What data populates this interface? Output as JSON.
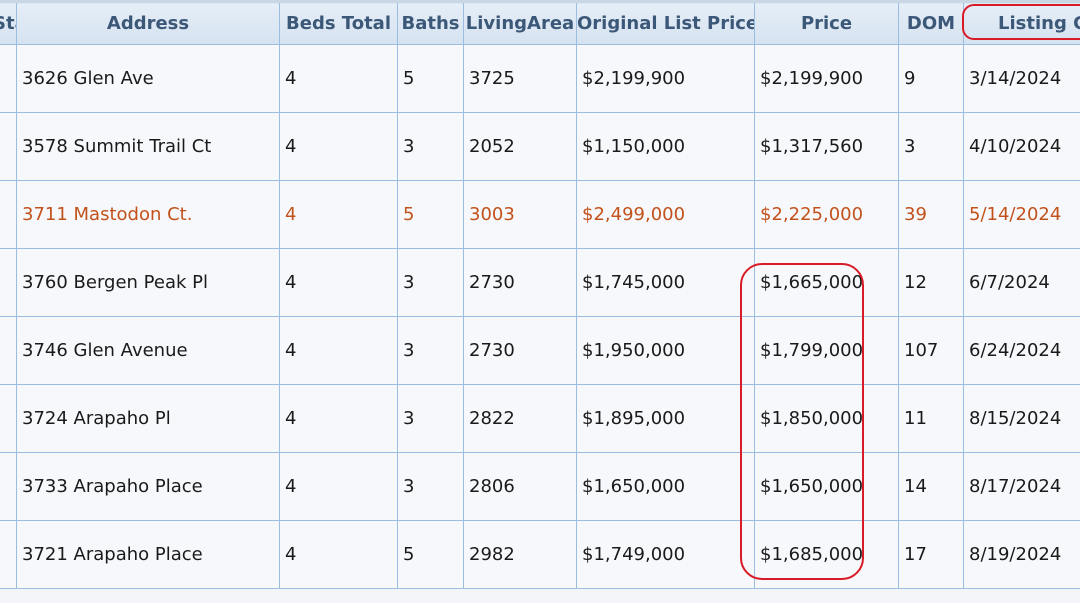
{
  "columns": [
    {
      "key": "status",
      "label": "Status"
    },
    {
      "key": "address",
      "label": "Address"
    },
    {
      "key": "beds",
      "label": "Beds Total"
    },
    {
      "key": "baths",
      "label": "Baths"
    },
    {
      "key": "living",
      "label": "LivingArea"
    },
    {
      "key": "orig_price",
      "label": "Original List Price"
    },
    {
      "key": "price",
      "label": "Price"
    },
    {
      "key": "dom",
      "label": "DOM"
    },
    {
      "key": "listing_contract",
      "label": "Listing Contract"
    }
  ],
  "rows": [
    {
      "status": "",
      "address": "3626 Glen Ave",
      "beds": "4",
      "baths": "5",
      "living": "3725",
      "orig_price": "$2,199,900",
      "price": "$2,199,900",
      "dom": "9",
      "listing_contract": "3/14/2024",
      "highlight": false
    },
    {
      "status": "",
      "address": "3578 Summit Trail Ct",
      "beds": "4",
      "baths": "3",
      "living": "2052",
      "orig_price": "$1,150,000",
      "price": "$1,317,560",
      "dom": "3",
      "listing_contract": "4/10/2024",
      "highlight": false
    },
    {
      "status": "",
      "address": "3711 Mastodon Ct.",
      "beds": "4",
      "baths": "5",
      "living": "3003",
      "orig_price": "$2,499,000",
      "price": "$2,225,000",
      "dom": "39",
      "listing_contract": "5/14/2024",
      "highlight": true
    },
    {
      "status": "",
      "address": "3760 Bergen Peak Pl",
      "beds": "4",
      "baths": "3",
      "living": "2730",
      "orig_price": "$1,745,000",
      "price": "$1,665,000",
      "dom": "12",
      "listing_contract": "6/7/2024",
      "highlight": false
    },
    {
      "status": "",
      "address": "3746 Glen Avenue",
      "beds": "4",
      "baths": "3",
      "living": "2730",
      "orig_price": "$1,950,000",
      "price": "$1,799,000",
      "dom": "107",
      "listing_contract": "6/24/2024",
      "highlight": false
    },
    {
      "status": "",
      "address": "3724 Arapaho Pl",
      "beds": "4",
      "baths": "3",
      "living": "2822",
      "orig_price": "$1,895,000",
      "price": "$1,850,000",
      "dom": "11",
      "listing_contract": "8/15/2024",
      "highlight": false
    },
    {
      "status": "",
      "address": "3733 Arapaho Place",
      "beds": "4",
      "baths": "3",
      "living": "2806",
      "orig_price": "$1,650,000",
      "price": "$1,650,000",
      "dom": "14",
      "listing_contract": "8/17/2024",
      "highlight": false
    },
    {
      "status": "",
      "address": "3721 Arapaho Place",
      "beds": "4",
      "baths": "5",
      "living": "2982",
      "orig_price": "$1,749,000",
      "price": "$1,685,000",
      "dom": "17",
      "listing_contract": "8/19/2024",
      "highlight": false
    }
  ],
  "colors": {
    "header_text": "#3c5878",
    "grid_border": "#9dbde0",
    "highlight_text": "#c2521c",
    "annotation": "#d81b26"
  }
}
